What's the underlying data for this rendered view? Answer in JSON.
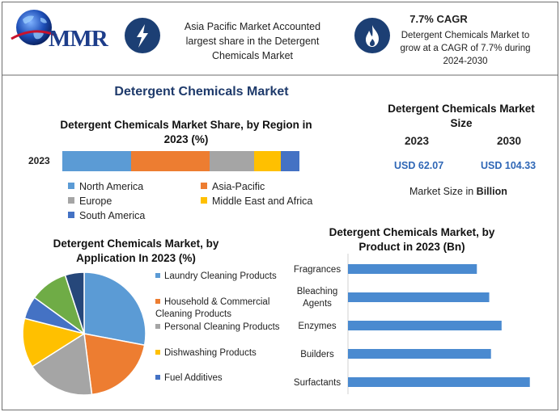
{
  "header": {
    "logo_text": "MMR",
    "region_fact": "Asia Pacific Market Accounted largest share in the Detergent Chemicals Market",
    "cagr_title": "7.7% CAGR",
    "cagr_text": "Detergent Chemicals Market to grow at a CAGR of 7.7% during 2024-2030",
    "icons": [
      "lightning-icon",
      "flame-icon"
    ]
  },
  "main_title": "Detergent Chemicals Market",
  "size_panel": {
    "title": "Detergent Chemicals Market Size",
    "years": [
      "2023",
      "2030"
    ],
    "values": [
      "USD 62.07",
      "USD 104.33"
    ],
    "note_prefix": "Market Size in ",
    "note_unit": "Billion"
  },
  "chart_data": [
    {
      "type": "bar",
      "orientation": "horizontal-stacked",
      "title": "Detergent Chemicals Market Share, by Region in 2023 (%)",
      "categories": [
        "2023"
      ],
      "series": [
        {
          "name": "North America",
          "values": [
            29
          ],
          "color": "#5b9bd5"
        },
        {
          "name": "Asia-Pacific",
          "values": [
            33
          ],
          "color": "#ed7d31"
        },
        {
          "name": "Europe",
          "values": [
            19
          ],
          "color": "#a5a5a5"
        },
        {
          "name": "Middle East and Africa",
          "values": [
            11
          ],
          "color": "#ffc000"
        },
        {
          "name": "South America",
          "values": [
            8
          ],
          "color": "#4472c4"
        }
      ],
      "legend_position": "bottom"
    },
    {
      "type": "pie",
      "title": "Detergent Chemicals Market, by Application In 2023 (%)",
      "labels": [
        "Laundry Cleaning Products",
        "Household & Commercial Cleaning Products",
        "Personal Cleaning Products",
        "Dishwashing Products",
        "Fuel Additives"
      ],
      "values": [
        28,
        20,
        18,
        13,
        6
      ],
      "extra_slices": [
        {
          "value": 10,
          "color": "#6fac46"
        },
        {
          "value": 5,
          "color": "#26477a"
        }
      ],
      "colors": [
        "#5b9bd5",
        "#ed7d31",
        "#a5a5a5",
        "#ffc000",
        "#4472c4"
      ],
      "legend_position": "right"
    },
    {
      "type": "bar",
      "orientation": "horizontal",
      "title": "Detergent Chemicals Market, by Product in 2023 (Bn)",
      "categories": [
        "Fragrances",
        "Bleaching Agents",
        "Enzymes",
        "Builders",
        "Surfactants"
      ],
      "values": [
        7.3,
        8.0,
        8.7,
        8.1,
        10.3
      ],
      "xlim": [
        0,
        11
      ],
      "color": "#4a8ad0"
    }
  ]
}
